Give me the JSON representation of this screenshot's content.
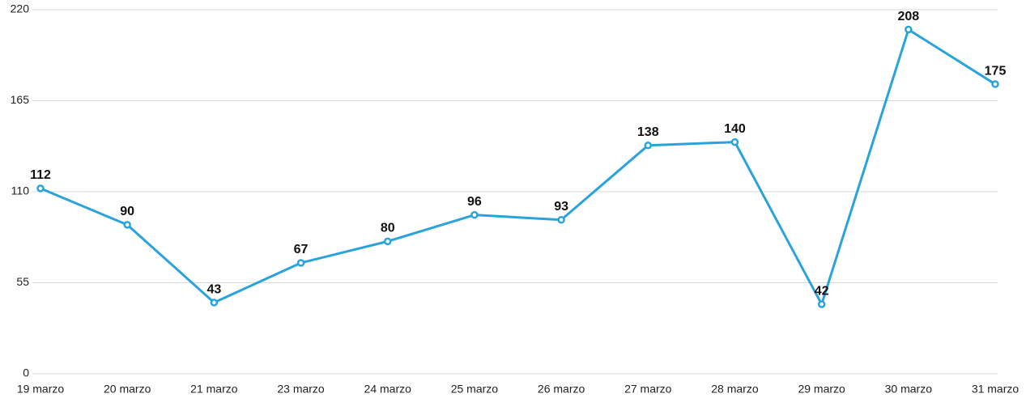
{
  "chart_data": {
    "type": "line",
    "categories": [
      "19 marzo",
      "20 marzo",
      "21 marzo",
      "23 marzo",
      "24 marzo",
      "25 marzo",
      "26 marzo",
      "27 marzo",
      "28 marzo",
      "29 marzo",
      "30 marzo",
      "31 marzo"
    ],
    "series": [
      {
        "color": "#2aa3dd",
        "values": [
          112,
          90,
          43,
          67,
          80,
          96,
          93,
          138,
          140,
          42,
          208,
          175
        ]
      }
    ],
    "ylim": [
      0,
      220
    ],
    "yticks": [
      0,
      55,
      110,
      165,
      220
    ],
    "grid": true
  }
}
